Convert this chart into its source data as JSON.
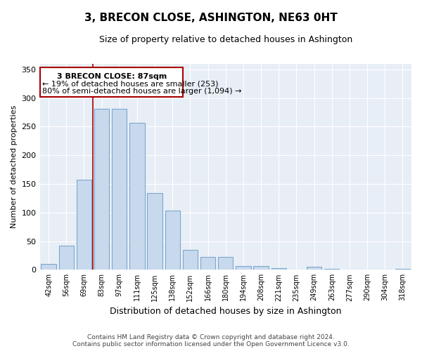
{
  "title": "3, BRECON CLOSE, ASHINGTON, NE63 0HT",
  "subtitle": "Size of property relative to detached houses in Ashington",
  "xlabel": "Distribution of detached houses by size in Ashington",
  "ylabel": "Number of detached properties",
  "bar_labels": [
    "42sqm",
    "56sqm",
    "69sqm",
    "83sqm",
    "97sqm",
    "111sqm",
    "125sqm",
    "138sqm",
    "152sqm",
    "166sqm",
    "180sqm",
    "194sqm",
    "208sqm",
    "221sqm",
    "235sqm",
    "249sqm",
    "263sqm",
    "277sqm",
    "290sqm",
    "304sqm",
    "318sqm"
  ],
  "bar_values": [
    10,
    42,
    157,
    281,
    281,
    257,
    134,
    103,
    35,
    22,
    23,
    7,
    6,
    3,
    0,
    5,
    1,
    0,
    0,
    0,
    1
  ],
  "bar_color": "#c8d9ee",
  "bar_edge_color": "#7ba7cc",
  "annotation_title": "3 BRECON CLOSE: 87sqm",
  "annotation_line1": "← 19% of detached houses are smaller (253)",
  "annotation_line2": "80% of semi-detached houses are larger (1,094) →",
  "annotation_box_color": "#ffffff",
  "annotation_box_edge": "#aa0000",
  "highlight_line_color": "#aa0000",
  "ylim": [
    0,
    360
  ],
  "yticks": [
    0,
    50,
    100,
    150,
    200,
    250,
    300,
    350
  ],
  "plot_bg_color": "#e8eef6",
  "footer_line1": "Contains HM Land Registry data © Crown copyright and database right 2024.",
  "footer_line2": "Contains public sector information licensed under the Open Government Licence v3.0.",
  "background_color": "#ffffff",
  "grid_color": "#ffffff"
}
